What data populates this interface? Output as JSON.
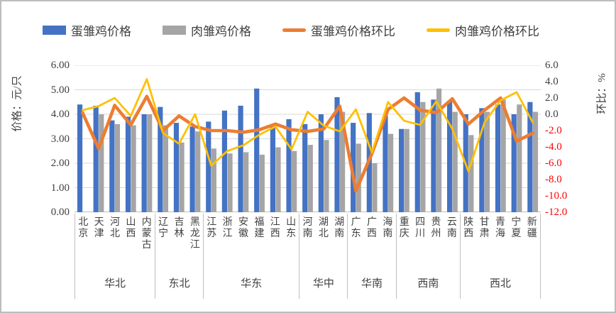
{
  "y_axis_left": {
    "title": "价格：元/只",
    "ticks": [
      "6.00",
      "5.00",
      "4.00",
      "3.00",
      "2.00",
      "1.00",
      "0.00"
    ]
  },
  "y_axis_right": {
    "title": "环比：%",
    "ticks": [
      "6.0",
      "4.0",
      "2.0",
      "0.0",
      "-2.0",
      "-4.0",
      "-6.0",
      "-8.0",
      "-10.0",
      "-12.0"
    ]
  },
  "colors": {
    "egg_price": "#4472C4",
    "meat_price": "#A5A5A5",
    "egg_mom": "#ED7D31",
    "meat_mom": "#FFC000",
    "grid": "#D9D9D9",
    "axis": "#BFBFBF",
    "negative_tick": "#FF0000",
    "text": "#404040"
  },
  "chart_data": {
    "type": "combo",
    "title": "",
    "categories": [
      "北京",
      "天津",
      "河北",
      "山西",
      "内蒙古",
      "辽宁",
      "吉林",
      "黑龙江",
      "江苏",
      "浙江",
      "安徽",
      "福建",
      "江西",
      "山东",
      "河南",
      "湖北",
      "湖南",
      "广东",
      "广西",
      "海南",
      "重庆",
      "四川",
      "贵州",
      "云南",
      "陕西",
      "甘肃",
      "青海",
      "宁夏",
      "新疆"
    ],
    "regions": [
      {
        "name": "华北",
        "provinces": [
          "北京",
          "天津",
          "河北",
          "山西",
          "内蒙古"
        ]
      },
      {
        "name": "东北",
        "provinces": [
          "辽宁",
          "吉林",
          "黑龙江"
        ]
      },
      {
        "name": "华东",
        "provinces": [
          "江苏",
          "浙江",
          "安徽",
          "福建",
          "江西",
          "山东"
        ]
      },
      {
        "name": "华中",
        "provinces": [
          "河南",
          "湖北",
          "湖南"
        ]
      },
      {
        "name": "华南",
        "provinces": [
          "广东",
          "广西",
          "海南"
        ]
      },
      {
        "name": "西南",
        "provinces": [
          "重庆",
          "四川",
          "贵州",
          "云南"
        ]
      },
      {
        "name": "西北",
        "provinces": [
          "陕西",
          "甘肃",
          "青海",
          "宁夏",
          "新疆"
        ]
      }
    ],
    "series": [
      {
        "name": "蛋雏鸡价格",
        "type": "bar",
        "axis": "left",
        "color": "#4472C4",
        "values": [
          4.4,
          4.35,
          3.75,
          3.9,
          4.0,
          4.3,
          3.65,
          3.5,
          3.7,
          4.15,
          4.35,
          5.05,
          3.5,
          3.8,
          3.6,
          4.0,
          4.7,
          3.65,
          4.05,
          3.95,
          3.4,
          4.9,
          4.6,
          4.55,
          4.0,
          4.25,
          4.4,
          4.0,
          4.5
        ]
      },
      {
        "name": "肉雏鸡价格",
        "type": "bar",
        "axis": "left",
        "color": "#A5A5A5",
        "values": [
          null,
          4.0,
          3.6,
          3.55,
          4.0,
          3.55,
          2.85,
          3.3,
          2.6,
          2.4,
          2.45,
          2.35,
          2.65,
          2.5,
          2.75,
          2.95,
          4.1,
          2.8,
          2.0,
          3.2,
          3.4,
          4.5,
          5.05,
          4.1,
          3.15,
          4.1,
          4.6,
          4.4,
          4.1
        ]
      },
      {
        "name": "蛋雏鸡价格环比",
        "type": "line",
        "axis": "right",
        "color": "#ED7D31",
        "values": [
          0.2,
          -4.2,
          1.1,
          -1.3,
          2.2,
          -2.0,
          -0.2,
          -1.5,
          -2.0,
          -2.0,
          -2.2,
          -1.9,
          -1.2,
          -1.9,
          -2.1,
          -1.8,
          1.0,
          -9.4,
          -4.8,
          0.6,
          2.0,
          0.5,
          0.2,
          1.9,
          -1.2,
          0.5,
          2.0,
          -3.3,
          -2.3
        ]
      },
      {
        "name": "肉雏鸡价格环比",
        "type": "line",
        "axis": "right",
        "color": "#FFC000",
        "values": [
          0.5,
          1.0,
          2.0,
          -0.2,
          4.3,
          -2.3,
          -3.6,
          0.0,
          -6.3,
          -4.5,
          -3.8,
          -2.5,
          -1.5,
          -4.3,
          0.3,
          -1.4,
          -2.1,
          0.6,
          -4.7,
          1.5,
          -0.8,
          -1.3,
          1.6,
          -1.8,
          -7.0,
          -1.0,
          1.7,
          2.7,
          -1.0
        ]
      }
    ],
    "left_axis": {
      "min": 0,
      "max": 6,
      "step": 1,
      "label": "价格：元/只"
    },
    "right_axis": {
      "min": -12,
      "max": 6,
      "step": 2,
      "label": "环比：%"
    },
    "grid": true,
    "legend_position": "top"
  }
}
